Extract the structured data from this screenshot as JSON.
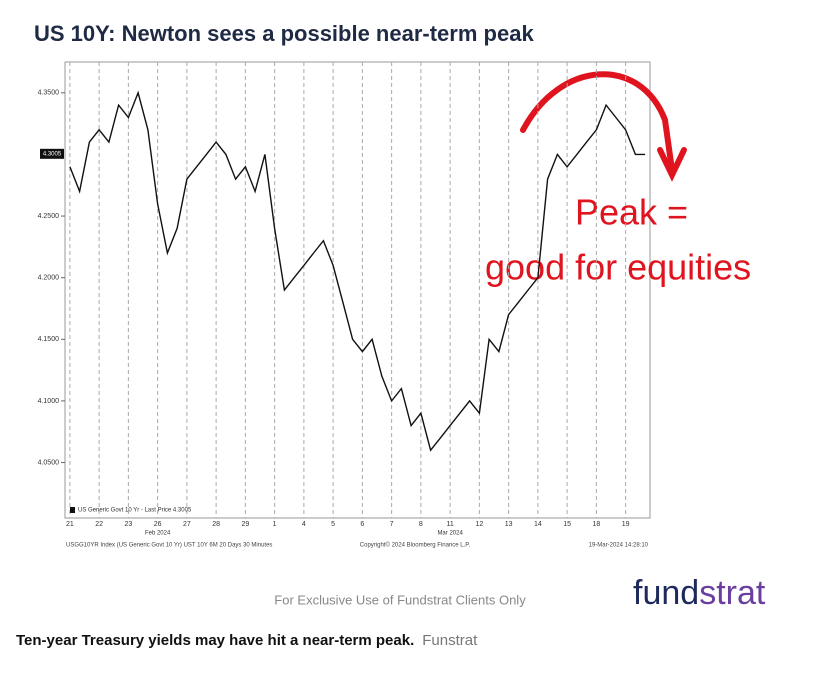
{
  "chart_data": {
    "type": "line",
    "title": "US 10Y: Newton sees a possible near-term peak",
    "categories": [
      "21",
      null,
      null,
      "22",
      null,
      null,
      "23",
      null,
      null,
      "26",
      null,
      null,
      "27",
      null,
      null,
      "28",
      null,
      null,
      "29",
      null,
      null,
      "1",
      null,
      null,
      "4",
      null,
      null,
      "5",
      null,
      null,
      "6",
      null,
      null,
      "7",
      null,
      null,
      "8",
      null,
      null,
      "11",
      null,
      null,
      "12",
      null,
      null,
      "13",
      null,
      null,
      "14",
      null,
      null,
      "15",
      null,
      null,
      "18",
      null,
      null,
      "19",
      null,
      null
    ],
    "series": [
      {
        "name": "US Generic Govt 10 Yr - Last Price 4.3005",
        "color": "#111111",
        "values": [
          4.29,
          4.27,
          4.31,
          4.32,
          4.31,
          4.34,
          4.33,
          4.35,
          4.32,
          4.26,
          4.22,
          4.24,
          4.28,
          4.29,
          4.3,
          4.31,
          4.3,
          4.28,
          4.29,
          4.27,
          4.3,
          4.24,
          4.19,
          4.2,
          4.21,
          4.22,
          4.23,
          4.21,
          4.18,
          4.15,
          4.14,
          4.15,
          4.12,
          4.1,
          4.11,
          4.08,
          4.09,
          4.06,
          4.07,
          4.08,
          4.09,
          4.1,
          4.09,
          4.15,
          4.14,
          4.17,
          4.18,
          4.19,
          4.2,
          4.28,
          4.3,
          4.29,
          4.3,
          4.31,
          4.32,
          4.34,
          4.33,
          4.32,
          4.3,
          4.3
        ]
      }
    ],
    "ylim": [
      4.005,
      4.375
    ],
    "yticks": [
      {
        "value": 4.05,
        "label": "4.0500"
      },
      {
        "value": 4.1,
        "label": "4.1000"
      },
      {
        "value": 4.15,
        "label": "4.1500"
      },
      {
        "value": 4.2,
        "label": "4.2000"
      },
      {
        "value": 4.25,
        "label": "4.2500"
      },
      {
        "value": 4.35,
        "label": "4.3500"
      }
    ],
    "last_price": 4.3005,
    "grid": true,
    "month_labels": [
      "Feb 2024",
      "Mar 2024"
    ],
    "source_left": "USGG10YR Index (US Generic Govt 10 Yr) UST 10Y 6M 20 Days 30 Minutes",
    "source_center": "Copyright© 2024 Bloomberg Finance L.P.",
    "source_right": "19-Mar-2024 14:28:10",
    "annotation": [
      "Peak =",
      "good for equities"
    ]
  },
  "footer": "For Exclusive Use of Fundstrat Clients Only",
  "logo": [
    "fund",
    "strat"
  ],
  "caption": {
    "text": "Ten-year Treasury yields may have hit a near-term peak.",
    "credit": "Funstrat"
  }
}
